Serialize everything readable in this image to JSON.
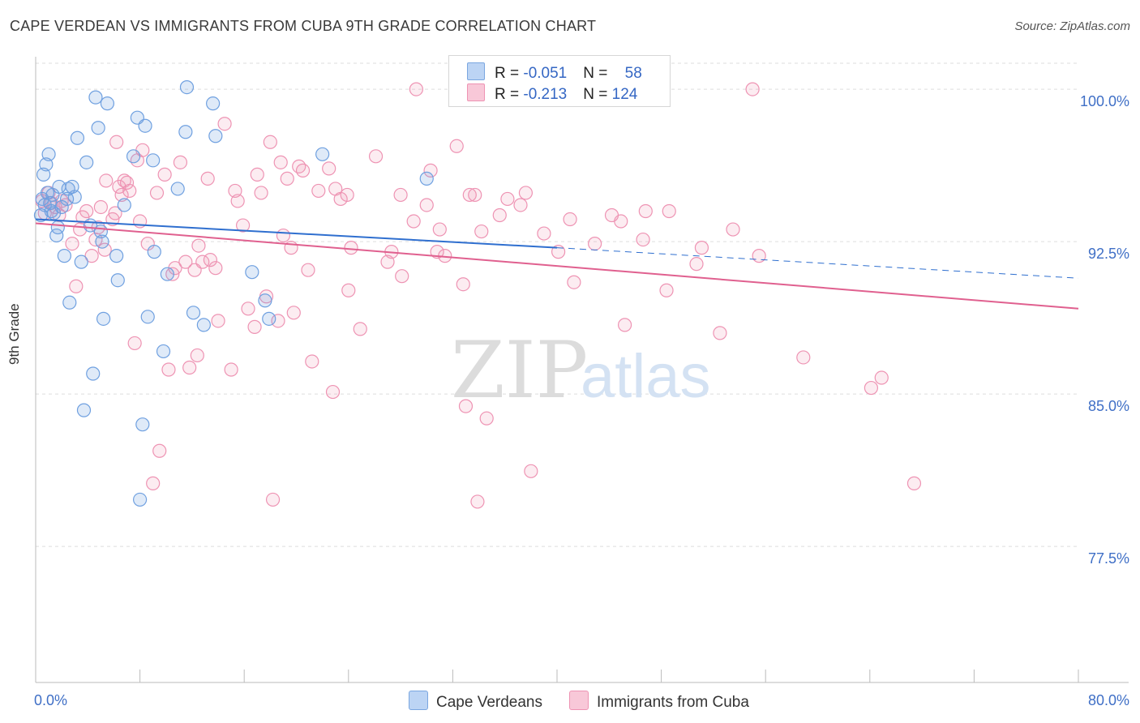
{
  "header": {
    "title": "CAPE VERDEAN VS IMMIGRANTS FROM CUBA 9TH GRADE CORRELATION CHART",
    "source": "Source: ZipAtlas.com"
  },
  "legend": {
    "rows": [
      {
        "r_label": "R = ",
        "r_value": "-0.051",
        "n_label": "N = ",
        "n_value": "58"
      },
      {
        "r_label": "R = ",
        "r_value": "-0.213",
        "n_label": "N = ",
        "n_value": "124"
      }
    ]
  },
  "watermark": {
    "zip": "ZIP",
    "atlas": "atlas"
  },
  "chart_data": {
    "type": "scatter",
    "ylabel": "9th Grade",
    "xlim": [
      0,
      80
    ],
    "ylim": [
      70.8,
      101.6
    ],
    "x_tick_labels": [
      "0.0%",
      "80.0%"
    ],
    "y_ticks": [
      77.5,
      85.0,
      92.5,
      100.0
    ],
    "y_tick_labels": [
      "77.5%",
      "85.0%",
      "92.5%",
      "100.0%"
    ],
    "grid": true,
    "legend_placement": "top-center",
    "colors": {
      "blue": "#6fa0e0",
      "blue_line": "#2f6fcf",
      "pink": "#ee93b3",
      "pink_line": "#e0608f",
      "tick_label": "#3f6fc6"
    },
    "series": [
      {
        "name": "Cape Verdeans",
        "color": "#6fa0e0",
        "trend": {
          "x": [
            0,
            40
          ],
          "y": [
            93.6,
            92.2
          ],
          "dashed_to": [
            80,
            90.7
          ]
        },
        "points": [
          [
            0.5,
            94.6
          ],
          [
            0.6,
            95.8
          ],
          [
            0.8,
            96.3
          ],
          [
            1.0,
            96.8
          ],
          [
            1.2,
            94.0
          ],
          [
            1.3,
            94.8
          ],
          [
            1.6,
            92.8
          ],
          [
            1.7,
            93.2
          ],
          [
            1.8,
            95.2
          ],
          [
            2.0,
            94.2
          ],
          [
            2.2,
            91.8
          ],
          [
            2.4,
            94.6
          ],
          [
            2.5,
            95.1
          ],
          [
            2.6,
            89.5
          ],
          [
            2.8,
            95.2
          ],
          [
            3.0,
            94.7
          ],
          [
            3.2,
            97.6
          ],
          [
            3.5,
            91.5
          ],
          [
            3.7,
            84.2
          ],
          [
            3.9,
            96.4
          ],
          [
            4.2,
            93.3
          ],
          [
            4.4,
            86.0
          ],
          [
            4.6,
            99.6
          ],
          [
            4.8,
            98.1
          ],
          [
            5.0,
            93.0
          ],
          [
            5.1,
            92.5
          ],
          [
            5.2,
            88.7
          ],
          [
            5.5,
            99.3
          ],
          [
            6.2,
            91.8
          ],
          [
            6.3,
            90.6
          ],
          [
            6.8,
            94.3
          ],
          [
            7.5,
            96.7
          ],
          [
            7.8,
            98.6
          ],
          [
            8.0,
            79.8
          ],
          [
            8.2,
            83.5
          ],
          [
            8.4,
            98.2
          ],
          [
            8.6,
            88.8
          ],
          [
            9.0,
            96.5
          ],
          [
            9.1,
            92.0
          ],
          [
            9.8,
            87.1
          ],
          [
            10.1,
            90.9
          ],
          [
            10.9,
            95.1
          ],
          [
            11.5,
            97.9
          ],
          [
            11.6,
            100.1
          ],
          [
            12.1,
            89.0
          ],
          [
            12.9,
            88.4
          ],
          [
            13.6,
            99.3
          ],
          [
            13.8,
            97.7
          ],
          [
            16.6,
            91.0
          ],
          [
            17.6,
            89.6
          ],
          [
            17.9,
            88.7
          ],
          [
            22.0,
            96.8
          ],
          [
            30.0,
            95.6
          ],
          [
            0.4,
            93.8
          ],
          [
            0.7,
            94.3
          ],
          [
            1.1,
            94.4
          ],
          [
            1.4,
            93.9
          ],
          [
            0.9,
            94.9
          ]
        ]
      },
      {
        "name": "Immigrants from Cuba",
        "color": "#ee93b3",
        "trend": {
          "x": [
            0,
            80
          ],
          "y": [
            93.4,
            89.2
          ]
        },
        "points": [
          [
            0.5,
            94.5
          ],
          [
            0.7,
            93.9
          ],
          [
            1.0,
            94.9
          ],
          [
            1.2,
            94.4
          ],
          [
            1.5,
            94.2
          ],
          [
            1.8,
            93.8
          ],
          [
            2.0,
            94.5
          ],
          [
            2.3,
            94.3
          ],
          [
            2.8,
            92.4
          ],
          [
            3.1,
            90.3
          ],
          [
            3.4,
            93.1
          ],
          [
            3.6,
            93.7
          ],
          [
            3.9,
            94.0
          ],
          [
            4.3,
            91.8
          ],
          [
            4.6,
            92.6
          ],
          [
            4.8,
            93.2
          ],
          [
            5.0,
            94.2
          ],
          [
            5.3,
            92.1
          ],
          [
            5.4,
            95.5
          ],
          [
            5.9,
            93.6
          ],
          [
            6.1,
            93.9
          ],
          [
            6.2,
            97.4
          ],
          [
            6.4,
            95.2
          ],
          [
            6.6,
            94.8
          ],
          [
            6.8,
            95.5
          ],
          [
            7.0,
            95.4
          ],
          [
            7.2,
            95.0
          ],
          [
            7.6,
            87.5
          ],
          [
            7.8,
            96.5
          ],
          [
            8.0,
            93.5
          ],
          [
            8.2,
            97.0
          ],
          [
            8.6,
            92.4
          ],
          [
            9.0,
            80.6
          ],
          [
            9.3,
            94.9
          ],
          [
            9.5,
            82.2
          ],
          [
            9.9,
            95.8
          ],
          [
            10.2,
            86.2
          ],
          [
            10.5,
            90.9
          ],
          [
            10.7,
            91.2
          ],
          [
            11.1,
            96.4
          ],
          [
            11.5,
            91.5
          ],
          [
            11.8,
            86.3
          ],
          [
            12.2,
            91.1
          ],
          [
            12.4,
            86.9
          ],
          [
            12.5,
            92.3
          ],
          [
            12.8,
            91.5
          ],
          [
            13.2,
            95.6
          ],
          [
            13.4,
            91.6
          ],
          [
            13.8,
            91.2
          ],
          [
            14.0,
            88.6
          ],
          [
            14.5,
            98.3
          ],
          [
            15.0,
            86.2
          ],
          [
            15.3,
            95.0
          ],
          [
            15.5,
            94.5
          ],
          [
            15.9,
            93.3
          ],
          [
            16.3,
            89.2
          ],
          [
            16.8,
            88.3
          ],
          [
            17.0,
            95.8
          ],
          [
            17.3,
            94.9
          ],
          [
            17.7,
            89.8
          ],
          [
            18.0,
            97.4
          ],
          [
            18.2,
            79.8
          ],
          [
            18.6,
            88.6
          ],
          [
            18.8,
            96.4
          ],
          [
            19.0,
            92.8
          ],
          [
            19.3,
            95.6
          ],
          [
            19.6,
            92.2
          ],
          [
            19.8,
            89.0
          ],
          [
            20.2,
            96.2
          ],
          [
            20.5,
            96.0
          ],
          [
            20.9,
            91.1
          ],
          [
            21.2,
            86.6
          ],
          [
            21.7,
            95.0
          ],
          [
            22.5,
            96.1
          ],
          [
            22.8,
            85.1
          ],
          [
            23.0,
            95.1
          ],
          [
            23.4,
            94.6
          ],
          [
            23.9,
            94.8
          ],
          [
            24.0,
            90.1
          ],
          [
            24.2,
            92.2
          ],
          [
            24.9,
            88.2
          ],
          [
            26.1,
            96.7
          ],
          [
            27.0,
            91.5
          ],
          [
            27.3,
            92.0
          ],
          [
            28.0,
            94.8
          ],
          [
            28.1,
            90.8
          ],
          [
            29.0,
            93.5
          ],
          [
            29.2,
            100.0
          ],
          [
            30.0,
            94.3
          ],
          [
            30.3,
            96.0
          ],
          [
            30.8,
            92.0
          ],
          [
            31.4,
            91.8
          ],
          [
            31.0,
            93.1
          ],
          [
            32.3,
            97.2
          ],
          [
            32.8,
            90.4
          ],
          [
            33.0,
            84.4
          ],
          [
            33.3,
            94.8
          ],
          [
            33.7,
            94.8
          ],
          [
            33.9,
            79.7
          ],
          [
            34.6,
            83.8
          ],
          [
            35.6,
            93.8
          ],
          [
            36.2,
            94.6
          ],
          [
            37.2,
            94.3
          ],
          [
            38.0,
            81.2
          ],
          [
            37.6,
            94.9
          ],
          [
            39.0,
            92.9
          ],
          [
            40.1,
            92.0
          ],
          [
            41.0,
            93.6
          ],
          [
            41.3,
            90.5
          ],
          [
            42.9,
            92.4
          ],
          [
            44.2,
            93.8
          ],
          [
            44.9,
            93.5
          ],
          [
            45.2,
            88.4
          ],
          [
            46.6,
            92.6
          ],
          [
            46.8,
            94.0
          ],
          [
            48.4,
            90.1
          ],
          [
            48.6,
            94.0
          ],
          [
            50.7,
            91.4
          ],
          [
            51.1,
            92.2
          ],
          [
            52.5,
            88.0
          ],
          [
            53.5,
            93.1
          ],
          [
            55.0,
            100.0
          ],
          [
            55.5,
            91.8
          ],
          [
            58.9,
            86.8
          ],
          [
            64.1,
            85.3
          ],
          [
            64.9,
            85.8
          ],
          [
            67.4,
            80.6
          ],
          [
            34.2,
            93.0
          ]
        ]
      }
    ]
  }
}
